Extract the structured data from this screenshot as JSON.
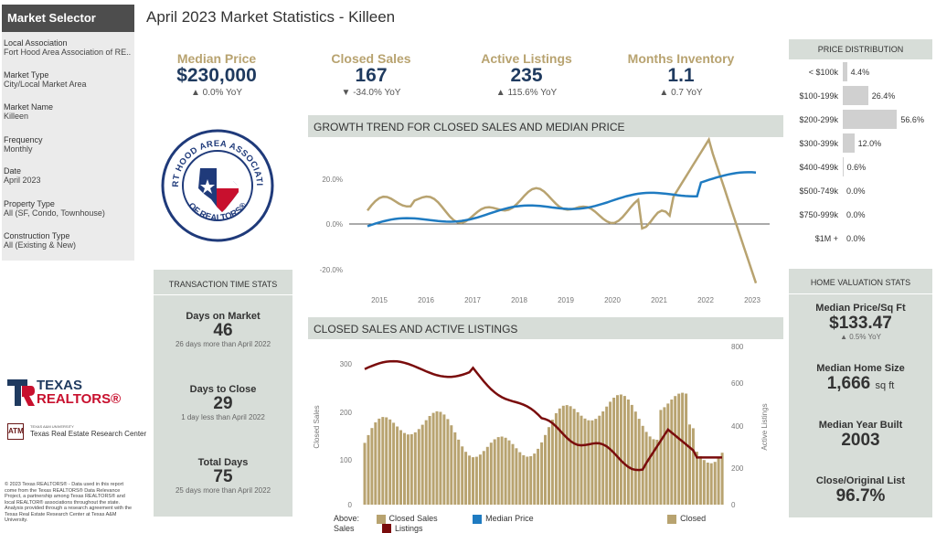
{
  "selector": {
    "title": "Market Selector",
    "fields": [
      {
        "label": "Local Association",
        "value": "Fort Hood Area Association of RE.."
      },
      {
        "label": "Market Type",
        "value": "City/Local Market Area"
      },
      {
        "label": "Market Name",
        "value": "Killeen"
      },
      {
        "label": "Frequency",
        "value": "Monthly"
      },
      {
        "label": "Date",
        "value": "April 2023"
      },
      {
        "label": "Property Type",
        "value": "All (SF, Condo, Townhouse)"
      },
      {
        "label": "Construction Type",
        "value": "All (Existing & New)"
      }
    ]
  },
  "page_title": "April 2023 Market Statistics - Killeen",
  "kpis": [
    {
      "label": "Median Price",
      "value": "$230,000",
      "delta": "▲ 0.0% YoY"
    },
    {
      "label": "Closed Sales",
      "value": "167",
      "delta": "▼ -34.0% YoY"
    },
    {
      "label": "Active Listings",
      "value": "235",
      "delta": "▲ 115.6% YoY"
    },
    {
      "label": "Months Inventory",
      "value": "1.1",
      "delta": "▲ 0.7 YoY"
    }
  ],
  "logo": {
    "ring_text_top": "FORT HOOD AREA ASSOCIATION",
    "ring_text_bottom": "OF REALTORS®"
  },
  "growth": {
    "title": "GROWTH TREND FOR CLOSED SALES AND MEDIAN PRICE",
    "y_ticks": [
      "20.0%",
      "0.0%",
      "-20.0%"
    ],
    "x_ticks": [
      "2015",
      "2016",
      "2017",
      "2018",
      "2019",
      "2020",
      "2021",
      "2022",
      "2023"
    ]
  },
  "closed_active": {
    "title": "CLOSED SALES AND ACTIVE LISTINGS",
    "left_ticks": [
      "300",
      "200",
      "100",
      "0"
    ],
    "right_ticks": [
      "800",
      "600",
      "400",
      "200",
      "0"
    ],
    "left_axis": "Closed Sales",
    "right_axis": "Active Listings"
  },
  "legend": {
    "above": "Above:",
    "closed_sales": "Closed Sales",
    "median_price": "Median Price",
    "closed_sales2": "Closed Sales",
    "listings": "Listings"
  },
  "transaction": {
    "title": "TRANSACTION TIME STATS",
    "items": [
      {
        "label": "Days on Market",
        "value": "46",
        "sub": "26 days more than April 2022"
      },
      {
        "label": "Days to Close",
        "value": "29",
        "sub": "1 day less than April 2022"
      },
      {
        "label": "Total Days",
        "value": "75",
        "sub": "25 days more than April 2022"
      }
    ]
  },
  "price_dist": {
    "title": "PRICE DISTRIBUTION",
    "rows": [
      {
        "cat": "< $100k",
        "val": "4.4%",
        "pct": 4.4
      },
      {
        "cat": "$100-199k",
        "val": "26.4%",
        "pct": 26.4
      },
      {
        "cat": "$200-299k",
        "val": "56.6%",
        "pct": 56.6
      },
      {
        "cat": "$300-399k",
        "val": "12.0%",
        "pct": 12.0
      },
      {
        "cat": "$400-499k",
        "val": "0.6%",
        "pct": 0.6
      },
      {
        "cat": "$500-749k",
        "val": "0.0%",
        "pct": 0
      },
      {
        "cat": "$750-999k",
        "val": "0.0%",
        "pct": 0
      },
      {
        "cat": "$1M +",
        "val": "0.0%",
        "pct": 0
      }
    ]
  },
  "home_val": {
    "title": "HOME VALUATION STATS",
    "items": [
      {
        "label": "Median Price/Sq Ft",
        "value": "$133.47",
        "sub": "▲ 0.5% YoY"
      },
      {
        "label": "Median Home Size",
        "value": "1,666",
        "unit": "sq ft"
      },
      {
        "label": "Median Year Built",
        "value": "2003"
      },
      {
        "label": "Close/Original List",
        "value": "96.7%"
      }
    ]
  },
  "brand": {
    "texas": "TEXAS",
    "realtors": "REALTORS®",
    "tamu_small": "TEXAS A&M UNIVERSITY",
    "tamu": "Texas Real Estate Research Center"
  },
  "footer": "© 2023 Texas REALTORS® - Data used in this report come from the Texas REALTORS® Data Relevance Project, a partnership among Texas REALTORS® and local REALTOR® associations throughout the state. Analysis provided through a research agreement with the Texas Real Estate Research Center at Texas A&M University.",
  "colors": {
    "gold": "#b8a370",
    "blue": "#1f7bc1",
    "maroon": "#7a0c0c",
    "navy": "#1f3a5f"
  }
}
